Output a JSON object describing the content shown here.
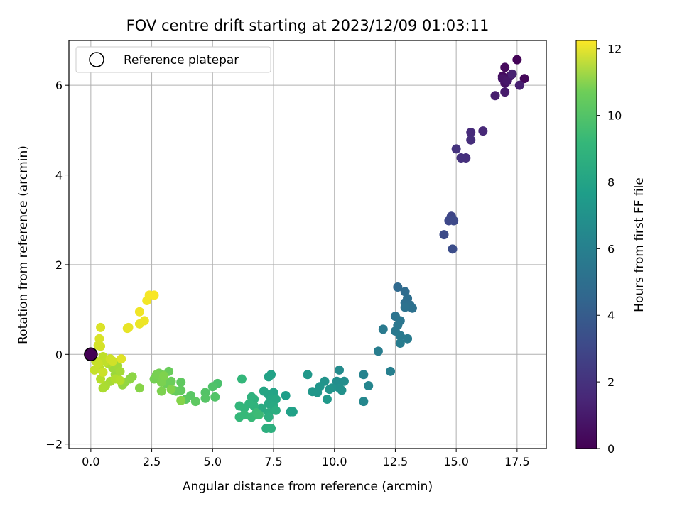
{
  "chart_data": {
    "type": "scatter",
    "title": "FOV centre drift starting at 2023/12/09 01:03:11",
    "xlabel": "Angular distance from reference (arcmin)",
    "ylabel": "Rotation from reference (arcmin)",
    "xlim": [
      -0.9,
      18.7
    ],
    "ylim": [
      -2.1,
      7.0
    ],
    "xticks": [
      0.0,
      2.5,
      5.0,
      7.5,
      10.0,
      12.5,
      15.0,
      17.5
    ],
    "xtick_labels": [
      "0.0",
      "2.5",
      "5.0",
      "7.5",
      "10.0",
      "12.5",
      "15.0",
      "17.5"
    ],
    "yticks": [
      -2,
      0,
      2,
      4,
      6
    ],
    "ytick_labels": [
      "−2",
      "0",
      "2",
      "4",
      "6"
    ],
    "grid": true,
    "legend": {
      "position": "top-left",
      "entries": [
        "Reference platepar"
      ]
    },
    "reference_point": {
      "x": 0.0,
      "y": 0.0
    },
    "colorbar": {
      "label": "Hours from first FF file",
      "range": [
        0,
        12.25
      ],
      "ticks": [
        0,
        2,
        4,
        6,
        8,
        10,
        12
      ],
      "tick_labels": [
        "0",
        "2",
        "4",
        "6",
        "8",
        "10",
        "12"
      ],
      "colormap": "viridis"
    },
    "points": [
      [
        17.5,
        6.57,
        0.1
      ],
      [
        17.8,
        6.15,
        0.2
      ],
      [
        17.0,
        6.4,
        0.3
      ],
      [
        16.9,
        6.2,
        0.4
      ],
      [
        17.2,
        6.2,
        0.5
      ],
      [
        17.0,
        6.05,
        0.6
      ],
      [
        16.9,
        6.15,
        0.7
      ],
      [
        17.1,
        6.1,
        0.8
      ],
      [
        17.0,
        5.85,
        0.9
      ],
      [
        16.6,
        5.77,
        1.0
      ],
      [
        17.6,
        6.0,
        1.05
      ],
      [
        17.3,
        6.25,
        1.1
      ],
      [
        16.1,
        4.98,
        1.4
      ],
      [
        15.6,
        4.95,
        1.5
      ],
      [
        15.6,
        4.78,
        1.6
      ],
      [
        15.4,
        4.38,
        1.7
      ],
      [
        15.2,
        4.38,
        1.75
      ],
      [
        15.0,
        4.58,
        1.8
      ],
      [
        14.8,
        3.08,
        2.6
      ],
      [
        14.7,
        2.98,
        2.7
      ],
      [
        14.9,
        2.98,
        2.75
      ],
      [
        14.5,
        2.67,
        2.8
      ],
      [
        14.85,
        2.35,
        2.9
      ],
      [
        12.6,
        1.5,
        4.2
      ],
      [
        12.9,
        1.4,
        4.3
      ],
      [
        13.0,
        1.25,
        4.4
      ],
      [
        12.9,
        1.15,
        4.45
      ],
      [
        13.1,
        1.1,
        4.5
      ],
      [
        13.2,
        1.03,
        4.55
      ],
      [
        12.9,
        1.05,
        4.6
      ],
      [
        12.5,
        0.85,
        4.7
      ],
      [
        12.7,
        0.75,
        4.8
      ],
      [
        12.6,
        0.65,
        4.85
      ],
      [
        12.5,
        0.52,
        4.9
      ],
      [
        12.0,
        0.56,
        5.0
      ],
      [
        12.7,
        0.42,
        5.05
      ],
      [
        13.0,
        0.35,
        5.1
      ],
      [
        12.7,
        0.25,
        5.15
      ],
      [
        11.8,
        0.07,
        5.2
      ],
      [
        12.3,
        -0.38,
        5.3
      ],
      [
        11.2,
        -0.45,
        5.5
      ],
      [
        11.4,
        -0.7,
        5.6
      ],
      [
        11.2,
        -1.05,
        5.7
      ],
      [
        10.2,
        -0.35,
        5.9
      ],
      [
        10.1,
        -0.6,
        6.0
      ],
      [
        10.4,
        -0.6,
        6.05
      ],
      [
        10.2,
        -0.75,
        6.1
      ],
      [
        10.3,
        -0.8,
        6.15
      ],
      [
        9.9,
        -0.75,
        6.2
      ],
      [
        9.6,
        -0.6,
        6.25
      ],
      [
        9.8,
        -0.78,
        6.3
      ],
      [
        9.4,
        -0.72,
        6.35
      ],
      [
        9.3,
        -0.85,
        6.4
      ],
      [
        9.1,
        -0.83,
        6.45
      ],
      [
        8.9,
        -0.45,
        6.5
      ],
      [
        9.7,
        -1.0,
        6.55
      ],
      [
        8.0,
        -0.92,
        6.8
      ],
      [
        8.2,
        -1.28,
        6.9
      ],
      [
        8.3,
        -1.28,
        6.95
      ],
      [
        7.4,
        -0.45,
        7.0
      ],
      [
        7.3,
        -0.5,
        7.05
      ],
      [
        7.5,
        -0.85,
        7.1
      ],
      [
        7.3,
        -0.9,
        7.15
      ],
      [
        7.1,
        -0.82,
        7.2
      ],
      [
        7.4,
        -1.0,
        7.25
      ],
      [
        7.6,
        -1.0,
        7.3
      ],
      [
        7.3,
        -1.1,
        7.35
      ],
      [
        7.5,
        -1.15,
        7.4
      ],
      [
        7.0,
        -1.2,
        7.45
      ],
      [
        6.9,
        -1.3,
        7.5
      ],
      [
        7.3,
        -1.3,
        7.55
      ],
      [
        7.6,
        -1.25,
        7.6
      ],
      [
        7.3,
        -1.4,
        7.65
      ],
      [
        7.2,
        -1.65,
        7.7
      ],
      [
        7.4,
        -1.65,
        7.75
      ],
      [
        6.7,
        -1.0,
        7.8
      ],
      [
        6.6,
        -0.95,
        7.85
      ],
      [
        6.7,
        -1.15,
        7.9
      ],
      [
        6.5,
        -1.1,
        7.95
      ],
      [
        6.3,
        -1.2,
        8.0
      ],
      [
        6.1,
        -1.15,
        8.05
      ],
      [
        6.2,
        -0.55,
        8.1
      ],
      [
        6.1,
        -1.4,
        8.15
      ],
      [
        6.3,
        -1.35,
        8.2
      ],
      [
        6.6,
        -1.4,
        8.25
      ],
      [
        6.8,
        -1.3,
        8.3
      ],
      [
        6.9,
        -1.35,
        8.35
      ],
      [
        5.2,
        -0.65,
        8.7
      ],
      [
        5.0,
        -0.72,
        8.8
      ],
      [
        5.1,
        -0.95,
        8.85
      ],
      [
        4.7,
        -0.85,
        8.9
      ],
      [
        4.7,
        -0.98,
        8.95
      ],
      [
        4.1,
        -0.92,
        9.05
      ],
      [
        3.9,
        -1.0,
        9.1
      ],
      [
        4.3,
        -1.05,
        9.15
      ],
      [
        3.7,
        -0.62,
        9.2
      ],
      [
        3.7,
        -0.8,
        9.25
      ],
      [
        3.4,
        -0.8,
        9.3
      ],
      [
        3.5,
        -0.82,
        9.35
      ],
      [
        3.2,
        -0.38,
        9.4
      ],
      [
        3.3,
        -0.6,
        9.45
      ],
      [
        3.1,
        -0.65,
        9.5
      ],
      [
        2.9,
        -0.45,
        9.55
      ],
      [
        2.8,
        -0.42,
        9.6
      ],
      [
        2.6,
        -0.55,
        9.65
      ],
      [
        2.7,
        -0.45,
        9.7
      ],
      [
        2.9,
        -0.62,
        9.75
      ],
      [
        2.9,
        -0.82,
        9.8
      ],
      [
        3.0,
        -0.48,
        9.85
      ],
      [
        3.3,
        -0.78,
        9.9
      ],
      [
        3.7,
        -1.03,
        9.95
      ],
      [
        2.0,
        -0.75,
        10.0
      ],
      [
        1.7,
        -0.5,
        10.1
      ],
      [
        1.6,
        -0.55,
        10.15
      ],
      [
        1.4,
        -0.62,
        10.2
      ],
      [
        1.3,
        -0.68,
        10.25
      ],
      [
        1.0,
        -0.45,
        10.4
      ],
      [
        0.9,
        -0.3,
        10.45
      ],
      [
        1.1,
        -0.25,
        10.5
      ],
      [
        1.2,
        -0.38,
        10.55
      ],
      [
        0.8,
        -0.6,
        10.6
      ],
      [
        0.6,
        -0.7,
        10.65
      ],
      [
        0.5,
        -0.75,
        10.7
      ],
      [
        0.7,
        -0.2,
        10.75
      ],
      [
        1.0,
        -0.55,
        10.8
      ],
      [
        1.2,
        -0.58,
        10.85
      ],
      [
        0.4,
        -0.55,
        10.9
      ],
      [
        0.35,
        -0.3,
        11.0
      ],
      [
        0.5,
        -0.05,
        11.05
      ],
      [
        0.6,
        -0.15,
        11.1
      ],
      [
        0.2,
        -0.15,
        11.15
      ],
      [
        0.15,
        -0.35,
        11.2
      ],
      [
        0.3,
        -0.2,
        11.25
      ],
      [
        0.5,
        -0.4,
        11.3
      ],
      [
        0.8,
        -0.1,
        11.35
      ],
      [
        0.9,
        -0.15,
        11.4
      ],
      [
        0.3,
        0.2,
        11.45
      ],
      [
        0.4,
        0.18,
        11.5
      ],
      [
        0.35,
        0.35,
        11.55
      ],
      [
        0.4,
        0.6,
        11.6
      ],
      [
        0.1,
        0.0,
        11.65
      ],
      [
        1.25,
        -0.1,
        11.7
      ],
      [
        1.5,
        0.58,
        11.8
      ],
      [
        1.55,
        0.6,
        11.85
      ],
      [
        2.0,
        0.68,
        11.9
      ],
      [
        2.2,
        0.75,
        11.95
      ],
      [
        2.0,
        0.95,
        12.0
      ],
      [
        2.3,
        1.2,
        12.05
      ],
      [
        2.4,
        1.32,
        12.1
      ],
      [
        2.6,
        1.32,
        12.15
      ]
    ]
  }
}
